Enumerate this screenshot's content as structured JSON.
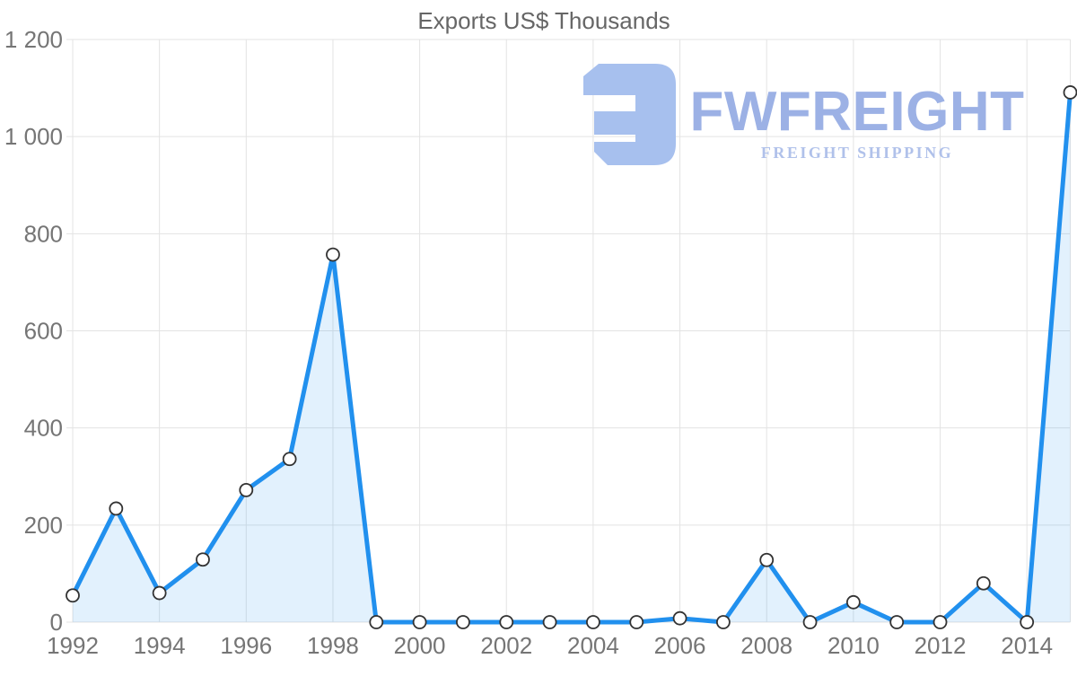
{
  "title": "Exports US$ Thousands",
  "watermark": {
    "brand": "FWFREIGHT",
    "tagline": "FREIGHT SHIPPING"
  },
  "colors": {
    "line": "#2190ee",
    "area_fill": "rgba(33,144,238,0.13)",
    "grid": "#e3e3e3",
    "axis_text": "#757575",
    "title_text": "#666666",
    "marker_fill": "#ffffff",
    "marker_stroke": "#333333",
    "watermark_icon": "#a7c0ee",
    "watermark_brand": "#9cb1e5",
    "watermark_tagline": "#b0c1ea"
  },
  "y_axis": {
    "tick_values": [
      0,
      200,
      400,
      600,
      800,
      1000,
      1200
    ],
    "tick_labels": [
      "0",
      "200",
      "400",
      "600",
      "800",
      "1 000",
      "1 200"
    ]
  },
  "x_axis": {
    "tick_years": [
      1992,
      1994,
      1996,
      1998,
      2000,
      2002,
      2004,
      2006,
      2008,
      2010,
      2012,
      2014
    ]
  },
  "chart_data": {
    "type": "area",
    "title": "Exports US$ Thousands",
    "series_name": "Exports",
    "x": [
      1992,
      1993,
      1994,
      1995,
      1996,
      1997,
      1998,
      1999,
      2000,
      2001,
      2002,
      2003,
      2004,
      2005,
      2006,
      2007,
      2008,
      2009,
      2010,
      2011,
      2012,
      2013,
      2014,
      2015
    ],
    "values": [
      55,
      234,
      60,
      129,
      272,
      336,
      757,
      0,
      0,
      0,
      0,
      0,
      0,
      0,
      8,
      0,
      128,
      0,
      41,
      0,
      0,
      80,
      0,
      1091
    ],
    "ylim": [
      0,
      1200
    ],
    "xlim": [
      1992,
      2015
    ],
    "grid": true,
    "marker": "circle",
    "legend": "none"
  }
}
